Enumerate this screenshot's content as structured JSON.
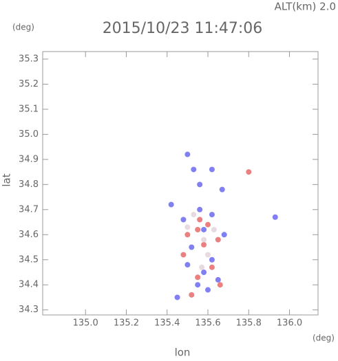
{
  "chart_data": {
    "type": "scatter",
    "title": "2015/10/23 11:47:06",
    "subtitle": "ALT(km)  2.0",
    "x_label": "lon",
    "y_label": "lat",
    "x_unit": "(deg)",
    "y_unit": "(deg)",
    "xlim": [
      134.79,
      136.14
    ],
    "ylim": [
      34.28,
      35.33
    ],
    "xticks": [
      {
        "value": 135,
        "label": "135.0"
      },
      135.2,
      135.4,
      135.6,
      135.8,
      {
        "value": 136,
        "label": "136.0"
      }
    ],
    "yticks": [
      34.3,
      34.4,
      34.5,
      34.6,
      34.7,
      34.8,
      34.9,
      {
        "value": 35,
        "label": "35.0"
      },
      35.1,
      35.2,
      35.3
    ],
    "series": [
      {
        "color": "#6a6af0",
        "x": [
          135.5,
          135.53,
          135.62,
          135.67,
          135.56,
          135.93,
          135.42,
          135.48,
          135.58,
          135.52,
          135.62,
          135.58,
          135.65,
          135.55,
          135.6,
          135.45,
          135.68,
          135.5,
          135.62,
          135.56
        ],
        "y": [
          34.92,
          34.86,
          34.86,
          34.78,
          34.8,
          34.67,
          34.72,
          34.66,
          34.62,
          34.55,
          34.5,
          34.45,
          34.42,
          34.4,
          34.38,
          34.35,
          34.6,
          34.48,
          34.68,
          34.7
        ]
      },
      {
        "color": "#e86a6a",
        "x": [
          135.55,
          135.6,
          135.5,
          135.58,
          135.48,
          135.62,
          135.55,
          135.66,
          135.52,
          135.8,
          135.65,
          135.56
        ],
        "y": [
          34.62,
          34.64,
          34.6,
          34.56,
          34.52,
          34.47,
          34.43,
          34.4,
          34.36,
          34.85,
          34.58,
          34.66
        ]
      },
      {
        "color": "#e4d4dc",
        "x": [
          135.53,
          135.58,
          135.63,
          135.5,
          135.6,
          135.57
        ],
        "y": [
          34.68,
          34.58,
          34.62,
          34.63,
          34.52,
          34.47
        ]
      }
    ]
  }
}
